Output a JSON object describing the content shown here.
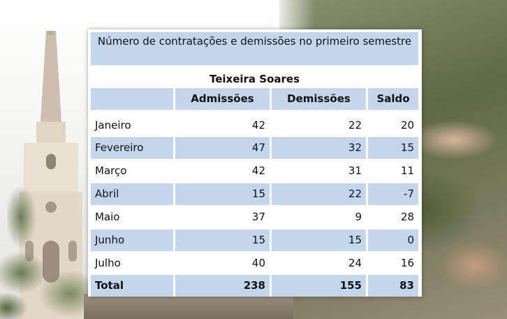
{
  "table": {
    "title": "Número de contratações e demissões no primeiro semestre",
    "subtitle": "Teixeira Soares",
    "headers": [
      "",
      "Admissões",
      "Demissões",
      "Saldo"
    ],
    "rows": [
      {
        "month": "Janeiro",
        "admissoes": "42",
        "demissoes": "22",
        "saldo": "20"
      },
      {
        "month": "Fevereiro",
        "admissoes": "47",
        "demissoes": "32",
        "saldo": "15"
      },
      {
        "month": "Março",
        "admissoes": "42",
        "demissoes": "31",
        "saldo": "11"
      },
      {
        "month": "Abril",
        "admissoes": "15",
        "demissoes": "22",
        "saldo": "-7"
      },
      {
        "month": "Maio",
        "admissoes": "37",
        "demissoes": "9",
        "saldo": "28"
      },
      {
        "month": "Junho",
        "admissoes": "15",
        "demissoes": "15",
        "saldo": "0"
      },
      {
        "month": "Julho",
        "admissoes": "40",
        "demissoes": "24",
        "saldo": "16"
      }
    ],
    "total": {
      "label": "Total",
      "admissoes": "238",
      "demissoes": "155",
      "saldo": "83"
    }
  },
  "colors": {
    "band": "#c3d6ec",
    "card": "#ffffff"
  }
}
